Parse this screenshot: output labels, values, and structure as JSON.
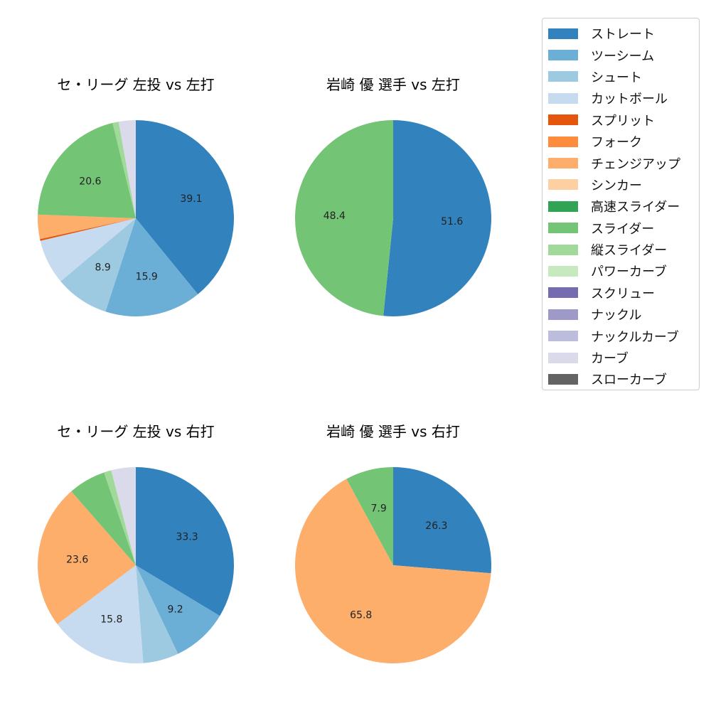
{
  "legend": {
    "items": [
      {
        "label": "ストレート",
        "color": "#3182bd"
      },
      {
        "label": "ツーシーム",
        "color": "#6baed6"
      },
      {
        "label": "シュート",
        "color": "#9ecae1"
      },
      {
        "label": "カットボール",
        "color": "#c6dbef"
      },
      {
        "label": "スプリット",
        "color": "#e6550d"
      },
      {
        "label": "フォーク",
        "color": "#fd8d3c"
      },
      {
        "label": "チェンジアップ",
        "color": "#fdae6b"
      },
      {
        "label": "シンカー",
        "color": "#fdd0a2"
      },
      {
        "label": "高速スライダー",
        "color": "#31a354"
      },
      {
        "label": "スライダー",
        "color": "#74c476"
      },
      {
        "label": "縦スライダー",
        "color": "#a1d99b"
      },
      {
        "label": "パワーカーブ",
        "color": "#c7e9c0"
      },
      {
        "label": "スクリュー",
        "color": "#756bb1"
      },
      {
        "label": "ナックル",
        "color": "#9e9ac8"
      },
      {
        "label": "ナックルカーブ",
        "color": "#bcbddc"
      },
      {
        "label": "カーブ",
        "color": "#dadaeb"
      },
      {
        "label": "スローカーブ",
        "color": "#636363"
      }
    ]
  },
  "chart_data": [
    {
      "type": "pie",
      "title": "セ・リーグ 左投 vs 左打",
      "slices": [
        {
          "category": "ストレート",
          "value": 39.1,
          "label": "39.1"
        },
        {
          "category": "ツーシーム",
          "value": 15.9,
          "label": "15.9"
        },
        {
          "category": "シュート",
          "value": 8.9,
          "label": "8.9"
        },
        {
          "category": "カットボール",
          "value": 7.4,
          "label": ""
        },
        {
          "category": "スプリット",
          "value": 0.3,
          "label": ""
        },
        {
          "category": "チェンジアップ",
          "value": 4.0,
          "label": ""
        },
        {
          "category": "スライダー",
          "value": 20.6,
          "label": "20.6"
        },
        {
          "category": "縦スライダー",
          "value": 1.0,
          "label": ""
        },
        {
          "category": "カーブ",
          "value": 2.8,
          "label": ""
        }
      ]
    },
    {
      "type": "pie",
      "title": "岩崎 優 選手 vs 左打",
      "slices": [
        {
          "category": "ストレート",
          "value": 51.6,
          "label": "51.6"
        },
        {
          "category": "スライダー",
          "value": 48.4,
          "label": "48.4"
        }
      ]
    },
    {
      "type": "pie",
      "title": "セ・リーグ 左投 vs 右打",
      "slices": [
        {
          "category": "ストレート",
          "value": 33.3,
          "label": "33.3"
        },
        {
          "category": "ツーシーム",
          "value": 9.2,
          "label": "9.2"
        },
        {
          "category": "シュート",
          "value": 5.8,
          "label": ""
        },
        {
          "category": "カットボール",
          "value": 15.8,
          "label": "15.8"
        },
        {
          "category": "チェンジアップ",
          "value": 23.6,
          "label": "23.6"
        },
        {
          "category": "スライダー",
          "value": 6.1,
          "label": ""
        },
        {
          "category": "縦スライダー",
          "value": 1.2,
          "label": ""
        },
        {
          "category": "カーブ",
          "value": 4.0,
          "label": ""
        }
      ]
    },
    {
      "type": "pie",
      "title": "岩崎 優 選手 vs 右打",
      "slices": [
        {
          "category": "ストレート",
          "value": 26.3,
          "label": "26.3"
        },
        {
          "category": "チェンジアップ",
          "value": 65.8,
          "label": "65.8"
        },
        {
          "category": "スライダー",
          "value": 7.9,
          "label": "7.9"
        }
      ]
    }
  ]
}
